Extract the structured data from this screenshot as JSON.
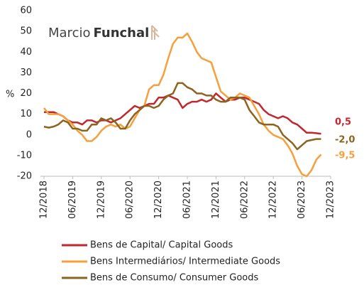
{
  "chart_data": {
    "type": "line",
    "logo": [
      "Marcio",
      "Funchal"
    ],
    "y_label": "%",
    "categories": [
      "12/2018",
      null,
      null,
      null,
      null,
      null,
      "06/2019",
      null,
      null,
      null,
      null,
      null,
      "12/2019",
      null,
      null,
      null,
      null,
      null,
      "06/2020",
      null,
      null,
      null,
      null,
      null,
      "12/2020",
      null,
      null,
      null,
      null,
      null,
      "06/2021",
      null,
      null,
      null,
      null,
      null,
      "12/2021",
      null,
      null,
      null,
      null,
      null,
      "06/2022",
      null,
      null,
      null,
      null,
      null,
      "12/2022",
      null,
      null,
      null,
      null,
      null,
      "06/2023",
      null,
      null,
      null,
      null,
      null,
      "12/2023"
    ],
    "ylim": [
      -20,
      60
    ],
    "yticks": [
      -20,
      -10,
      0,
      10,
      20,
      30,
      40,
      50,
      60
    ],
    "grid": false,
    "legend": "bottom",
    "series": [
      {
        "name": "Bens de Capital/ Capital Goods",
        "color": "#c0282d",
        "values": [
          11,
          11,
          11,
          10,
          9,
          7,
          6,
          6,
          5,
          7,
          7,
          6,
          7,
          7,
          6,
          7,
          8,
          10,
          12,
          14,
          13,
          14,
          15,
          15,
          18,
          18,
          19,
          18,
          17,
          13,
          15,
          16,
          16,
          17,
          16,
          17,
          20,
          18,
          16,
          17,
          17,
          18,
          18,
          17,
          16,
          15,
          12,
          10,
          9,
          8,
          9,
          8,
          6,
          5,
          3,
          1,
          1,
          0.8,
          0.5,
          null,
          null
        ],
        "value_labels": [
          null,
          null,
          null,
          null,
          null,
          null,
          null,
          null,
          null,
          null,
          null,
          null,
          null,
          null,
          null,
          null,
          null,
          null,
          null,
          null,
          null,
          null,
          null,
          null,
          null,
          null,
          null,
          null,
          null,
          null,
          null,
          null,
          null,
          null,
          null,
          null,
          null,
          null,
          null,
          null,
          null,
          null,
          null,
          null,
          null,
          null,
          null,
          null,
          null,
          null,
          null,
          null,
          null,
          null,
          null,
          null,
          null,
          null,
          "0,5",
          null,
          null
        ]
      },
      {
        "name": "Bens Intermediários/ Intermediate Goods",
        "color": "#f5a03c",
        "values": [
          13,
          10,
          10,
          10,
          9,
          7,
          5,
          2,
          0,
          -3,
          -3,
          -1,
          2,
          4,
          5,
          4,
          5,
          3,
          4,
          8,
          12,
          14,
          22,
          24,
          24,
          29,
          37,
          44,
          47,
          47,
          49,
          45,
          40,
          37,
          36,
          35,
          28,
          21,
          19,
          17,
          18,
          20,
          19,
          18,
          14,
          10,
          5,
          2,
          0,
          -1,
          -2,
          -5,
          -9,
          -15,
          -19,
          -20,
          -17,
          -12,
          -9.5,
          null,
          null
        ],
        "value_labels": [
          null,
          null,
          null,
          null,
          null,
          null,
          null,
          null,
          null,
          null,
          null,
          null,
          null,
          null,
          null,
          null,
          null,
          null,
          null,
          null,
          null,
          null,
          null,
          null,
          null,
          null,
          null,
          null,
          null,
          null,
          null,
          null,
          null,
          null,
          null,
          null,
          null,
          null,
          null,
          null,
          null,
          null,
          null,
          null,
          null,
          null,
          null,
          null,
          null,
          null,
          null,
          null,
          null,
          null,
          null,
          null,
          null,
          null,
          "-9,5",
          null,
          null
        ]
      },
      {
        "name": "Bens de Consumo/ Consumer Goods",
        "color": "#8b6420",
        "values": [
          4,
          3.5,
          4,
          5,
          7,
          6,
          3,
          3,
          2,
          2,
          5,
          5,
          8,
          7,
          8,
          6,
          3,
          3,
          7,
          10,
          12,
          14,
          14,
          13,
          14,
          17,
          19,
          20,
          25,
          25,
          23,
          22,
          20,
          20,
          19,
          19,
          17,
          16,
          16,
          18,
          18,
          18,
          17,
          12,
          9,
          6,
          5,
          5,
          5,
          4,
          0,
          -2,
          -4,
          -7,
          -5,
          -3,
          -2.5,
          -2,
          -2,
          null,
          null
        ],
        "value_labels": [
          null,
          null,
          null,
          null,
          null,
          null,
          null,
          null,
          null,
          null,
          null,
          null,
          null,
          null,
          null,
          null,
          null,
          null,
          null,
          null,
          null,
          null,
          null,
          null,
          null,
          null,
          null,
          null,
          null,
          null,
          null,
          null,
          null,
          null,
          null,
          null,
          null,
          null,
          null,
          null,
          null,
          null,
          null,
          null,
          null,
          null,
          null,
          null,
          null,
          null,
          null,
          null,
          null,
          null,
          null,
          null,
          null,
          null,
          "-2,0",
          null,
          null
        ]
      }
    ]
  }
}
